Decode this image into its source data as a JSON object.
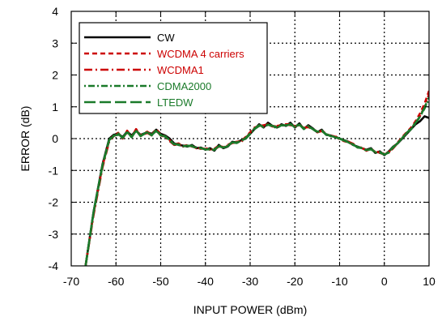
{
  "chart_data": {
    "type": "line",
    "title": "",
    "xlabel": "INPUT POWER (dBm)",
    "ylabel": "ERROR (dB)",
    "xlim": [
      -70,
      10
    ],
    "ylim": [
      -4,
      4
    ],
    "xticks": [
      "-70",
      "-60",
      "-50",
      "-40",
      "-30",
      "-20",
      "-10",
      "0",
      "10"
    ],
    "yticks": [
      "-4",
      "-3",
      "-2",
      "-1",
      "0",
      "1",
      "2",
      "3",
      "4"
    ],
    "grid": true,
    "legend_position": "top-left",
    "series": [
      {
        "name": "CW",
        "color": "#000000",
        "dash": "solid",
        "x": [
          -66.8,
          -65,
          -63,
          -61.5,
          -60.5,
          -59.5,
          -58.5,
          -57.5,
          -56.5,
          -55.5,
          -54.5,
          -53,
          -52,
          -51,
          -50,
          -49,
          -48,
          -47,
          -46,
          -45,
          -44,
          -43,
          -42,
          -41,
          -40,
          -39,
          -38,
          -37,
          -36,
          -35,
          -34,
          -33,
          -32,
          -31,
          -30,
          -29,
          -28,
          -27,
          -26,
          -25,
          -24,
          -23,
          -22,
          -21,
          -20,
          -19,
          -18,
          -17,
          -16,
          -15,
          -14,
          -13,
          -12,
          -11,
          -10,
          -9,
          -8,
          -7,
          -6,
          -5,
          -4,
          -3,
          -2,
          -1,
          0,
          1,
          2,
          3,
          4,
          5,
          6,
          7,
          8,
          9,
          10
        ],
        "y": [
          -4.0,
          -2.3,
          -0.8,
          0.0,
          0.12,
          0.15,
          0.05,
          0.22,
          0.1,
          0.25,
          0.12,
          0.2,
          0.15,
          0.28,
          0.15,
          0.1,
          0.0,
          -0.15,
          -0.2,
          -0.22,
          -0.25,
          -0.2,
          -0.3,
          -0.28,
          -0.35,
          -0.3,
          -0.38,
          -0.2,
          -0.3,
          -0.25,
          -0.1,
          -0.12,
          -0.05,
          0.0,
          0.15,
          0.3,
          0.45,
          0.35,
          0.5,
          0.4,
          0.35,
          0.45,
          0.4,
          0.5,
          0.35,
          0.48,
          0.3,
          0.42,
          0.32,
          0.2,
          0.28,
          0.12,
          0.1,
          0.05,
          0.0,
          -0.05,
          -0.1,
          -0.2,
          -0.25,
          -0.3,
          -0.35,
          -0.3,
          -0.45,
          -0.4,
          -0.52,
          -0.4,
          -0.25,
          -0.15,
          0.0,
          0.15,
          0.3,
          0.45,
          0.55,
          0.7,
          0.65
        ]
      },
      {
        "name": "WCDMA 4 carriers",
        "color": "#cc0000",
        "dash": "6,4",
        "x": [
          -66.8,
          -65,
          -63,
          -61.5,
          -60.5,
          -59.5,
          -58.5,
          -57.5,
          -56.5,
          -55.5,
          -54.5,
          -53,
          -52,
          -51,
          -50,
          -49,
          -48,
          -47,
          -46,
          -45,
          -44,
          -43,
          -42,
          -41,
          -40,
          -39,
          -38,
          -37,
          -36,
          -35,
          -34,
          -33,
          -32,
          -31,
          -30,
          -29,
          -28,
          -27,
          -26,
          -25,
          -24,
          -23,
          -22,
          -21,
          -20,
          -19,
          -18,
          -17,
          -16,
          -15,
          -14,
          -13,
          -12,
          -11,
          -10,
          -9,
          -8,
          -7,
          -6,
          -5,
          -4,
          -3,
          -2,
          -1,
          0,
          1,
          2,
          3,
          4,
          5,
          6,
          7,
          8,
          9,
          10
        ],
        "y": [
          -4.0,
          -2.35,
          -0.85,
          -0.05,
          0.1,
          0.18,
          0.0,
          0.25,
          0.05,
          0.3,
          0.1,
          0.22,
          0.12,
          0.3,
          0.12,
          0.08,
          -0.05,
          -0.18,
          -0.15,
          -0.25,
          -0.2,
          -0.25,
          -0.28,
          -0.32,
          -0.3,
          -0.35,
          -0.32,
          -0.22,
          -0.28,
          -0.2,
          -0.12,
          -0.1,
          -0.08,
          0.05,
          0.2,
          0.35,
          0.4,
          0.42,
          0.45,
          0.38,
          0.4,
          0.42,
          0.45,
          0.45,
          0.38,
          0.45,
          0.32,
          0.38,
          0.3,
          0.22,
          0.25,
          0.15,
          0.08,
          0.08,
          -0.02,
          -0.08,
          -0.12,
          -0.18,
          -0.28,
          -0.28,
          -0.38,
          -0.32,
          -0.42,
          -0.45,
          -0.5,
          -0.42,
          -0.28,
          -0.12,
          0.05,
          0.2,
          0.35,
          0.55,
          0.8,
          1.1,
          1.5
        ]
      },
      {
        "name": "WCDMA1",
        "color": "#cc0000",
        "dash": "10,4,2,4",
        "x": [
          -66.8,
          -65,
          -63,
          -61.5,
          -60.5,
          -59.5,
          -58.5,
          -57.5,
          -56.5,
          -55.5,
          -54.5,
          -53,
          -52,
          -51,
          -50,
          -49,
          -48,
          -47,
          -46,
          -45,
          -44,
          -43,
          -42,
          -41,
          -40,
          -39,
          -38,
          -37,
          -36,
          -35,
          -34,
          -33,
          -32,
          -31,
          -30,
          -29,
          -28,
          -27,
          -26,
          -25,
          -24,
          -23,
          -22,
          -21,
          -20,
          -19,
          -18,
          -17,
          -16,
          -15,
          -14,
          -13,
          -12,
          -11,
          -10,
          -9,
          -8,
          -7,
          -6,
          -5,
          -4,
          -3,
          -2,
          -1,
          0,
          1,
          2,
          3,
          4,
          5,
          6,
          7,
          8,
          9,
          10
        ],
        "y": [
          -4.0,
          -2.4,
          -0.9,
          -0.08,
          0.08,
          0.15,
          0.02,
          0.2,
          0.08,
          0.28,
          0.08,
          0.18,
          0.1,
          0.26,
          0.1,
          0.05,
          -0.08,
          -0.2,
          -0.18,
          -0.22,
          -0.22,
          -0.24,
          -0.3,
          -0.3,
          -0.32,
          -0.33,
          -0.35,
          -0.25,
          -0.26,
          -0.22,
          -0.14,
          -0.12,
          -0.1,
          0.02,
          0.18,
          0.32,
          0.42,
          0.38,
          0.46,
          0.4,
          0.38,
          0.4,
          0.44,
          0.42,
          0.4,
          0.42,
          0.34,
          0.36,
          0.3,
          0.2,
          0.24,
          0.14,
          0.1,
          0.06,
          0.0,
          -0.06,
          -0.1,
          -0.16,
          -0.26,
          -0.3,
          -0.36,
          -0.34,
          -0.4,
          -0.44,
          -0.48,
          -0.44,
          -0.3,
          -0.14,
          0.02,
          0.18,
          0.32,
          0.5,
          0.72,
          1.0,
          1.4
        ]
      },
      {
        "name": "CDMA2000",
        "color": "#1a7a2a",
        "dash": "2,3,8,3",
        "x": [
          -66.8,
          -65,
          -63,
          -61.5,
          -60.5,
          -59.5,
          -58.5,
          -57.5,
          -56.5,
          -55.5,
          -54.5,
          -53,
          -52,
          -51,
          -50,
          -49,
          -48,
          -47,
          -46,
          -45,
          -44,
          -43,
          -42,
          -41,
          -40,
          -39,
          -38,
          -37,
          -36,
          -35,
          -34,
          -33,
          -32,
          -31,
          -30,
          -29,
          -28,
          -27,
          -26,
          -25,
          -24,
          -23,
          -22,
          -21,
          -20,
          -19,
          -18,
          -17,
          -16,
          -15,
          -14,
          -13,
          -12,
          -11,
          -10,
          -9,
          -8,
          -7,
          -6,
          -5,
          -4,
          -3,
          -2,
          -1,
          0,
          1,
          2,
          3,
          4,
          5,
          6,
          7,
          8,
          9,
          10
        ],
        "y": [
          -4.0,
          -2.3,
          -0.82,
          -0.02,
          0.1,
          0.12,
          0.04,
          0.2,
          0.06,
          0.24,
          0.1,
          0.2,
          0.12,
          0.24,
          0.12,
          0.06,
          -0.04,
          -0.16,
          -0.2,
          -0.24,
          -0.24,
          -0.22,
          -0.28,
          -0.3,
          -0.34,
          -0.32,
          -0.36,
          -0.22,
          -0.28,
          -0.24,
          -0.12,
          -0.14,
          -0.06,
          0.0,
          0.14,
          0.3,
          0.4,
          0.36,
          0.44,
          0.38,
          0.34,
          0.42,
          0.4,
          0.46,
          0.36,
          0.44,
          0.3,
          0.4,
          0.3,
          0.2,
          0.26,
          0.12,
          0.1,
          0.04,
          0.0,
          -0.04,
          -0.12,
          -0.2,
          -0.26,
          -0.3,
          -0.38,
          -0.32,
          -0.44,
          -0.42,
          -0.5,
          -0.42,
          -0.26,
          -0.14,
          0.02,
          0.16,
          0.3,
          0.48,
          0.7,
          0.95,
          1.25
        ]
      },
      {
        "name": "LTEDW",
        "color": "#1a7a2a",
        "dash": "14,5",
        "x": [
          -66.8,
          -65,
          -63,
          -61.5,
          -60.5,
          -59.5,
          -58.5,
          -57.5,
          -56.5,
          -55.5,
          -54.5,
          -53,
          -52,
          -51,
          -50,
          -49,
          -48,
          -47,
          -46,
          -45,
          -44,
          -43,
          -42,
          -41,
          -40,
          -39,
          -38,
          -37,
          -36,
          -35,
          -34,
          -33,
          -32,
          -31,
          -30,
          -29,
          -28,
          -27,
          -26,
          -25,
          -24,
          -23,
          -22,
          -21,
          -20,
          -19,
          -18,
          -17,
          -16,
          -15,
          -14,
          -13,
          -12,
          -11,
          -10,
          -9,
          -8,
          -7,
          -6,
          -5,
          -4,
          -3,
          -2,
          -1,
          0,
          1,
          2,
          3,
          4,
          5,
          6,
          7,
          8,
          9,
          10
        ],
        "y": [
          -4.0,
          -2.32,
          -0.84,
          -0.04,
          0.08,
          0.16,
          0.02,
          0.22,
          0.04,
          0.26,
          0.08,
          0.2,
          0.1,
          0.28,
          0.1,
          0.08,
          -0.06,
          -0.18,
          -0.18,
          -0.24,
          -0.22,
          -0.24,
          -0.3,
          -0.3,
          -0.34,
          -0.34,
          -0.34,
          -0.24,
          -0.28,
          -0.22,
          -0.12,
          -0.12,
          -0.08,
          0.02,
          0.16,
          0.32,
          0.42,
          0.38,
          0.44,
          0.4,
          0.36,
          0.42,
          0.42,
          0.44,
          0.38,
          0.44,
          0.32,
          0.38,
          0.3,
          0.22,
          0.24,
          0.14,
          0.08,
          0.06,
          0.0,
          -0.06,
          -0.12,
          -0.18,
          -0.28,
          -0.3,
          -0.36,
          -0.34,
          -0.42,
          -0.44,
          -0.5,
          -0.44,
          -0.28,
          -0.14,
          0.02,
          0.18,
          0.32,
          0.5,
          0.7,
          0.98,
          1.3
        ]
      }
    ]
  }
}
